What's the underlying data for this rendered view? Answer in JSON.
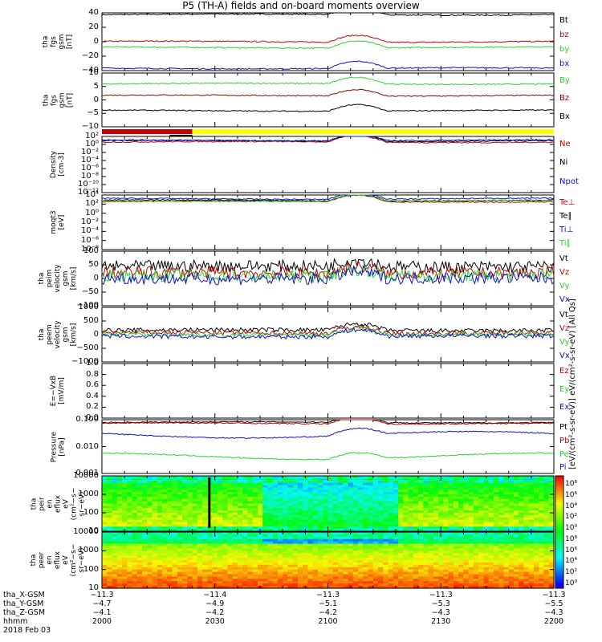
{
  "title": "P5 (TH-A) fields and on-board moments overview",
  "colors": {
    "black": "#000000",
    "red": "#c40000",
    "green": "#27d52a",
    "blue": "#1010c8",
    "darkred": "#8b0000",
    "yellow": "#ffff00"
  },
  "chart_data": [
    {
      "type": "line",
      "ylabel": "tha\nfgs\ngsm\n[nT]",
      "ylim": [
        -40,
        40
      ],
      "ticks": [
        "40",
        "20",
        "0",
        "−20",
        "−40"
      ],
      "series": [
        {
          "name": "Bt",
          "color": "#000000",
          "approx": 40
        },
        {
          "name": "bz",
          "color": "#c40000",
          "approx": 0
        },
        {
          "name": "by",
          "color": "#27d52a",
          "approx": -7
        },
        {
          "name": "bx",
          "color": "#1010c8",
          "approx": -37
        }
      ]
    },
    {
      "type": "line",
      "ylabel": "tha\nfgs\ngsm\n[nT]",
      "ylim": [
        -12,
        10
      ],
      "ticks": [
        "10",
        "5",
        "0",
        "−5",
        "−10"
      ],
      "series": [
        {
          "name": "By",
          "color": "#27d52a",
          "approx": 6
        },
        {
          "name": "Bz",
          "color": "#8b0000",
          "approx": 0
        },
        {
          "name": "Bx",
          "color": "#000000",
          "approx": -6
        }
      ]
    },
    {
      "type": "line",
      "ylabel": "Density\n[cm-3]",
      "scale": "log",
      "ticks": [
        "10²",
        "10⁰",
        "10⁻²",
        "10⁻⁴",
        "10⁻⁶",
        "10⁻⁸",
        "10⁻¹⁰",
        "10⁻¹²"
      ],
      "series": [
        {
          "name": "Ne",
          "color": "#c40000"
        },
        {
          "name": "Ni",
          "color": "#000000"
        },
        {
          "name": "Npot",
          "color": "#1010c8"
        }
      ]
    },
    {
      "type": "line",
      "ylabel": "moqt3\n[eV]",
      "scale": "log",
      "ticks": [
        "10⁴",
        "10²",
        "10⁰",
        "10⁻²",
        "10⁻⁴",
        "10⁻⁶",
        "10⁻⁸"
      ],
      "series": [
        {
          "name": "Te⊥",
          "color": "#c40000"
        },
        {
          "name": "Te∥",
          "color": "#000000"
        },
        {
          "name": "Ti⊥",
          "color": "#1010c8"
        },
        {
          "name": "Ti∥",
          "color": "#27d52a"
        }
      ]
    },
    {
      "type": "line",
      "ylabel": "tha\npeim\nvelocity\ngsm\n[km/s]",
      "ylim": [
        -100,
        100
      ],
      "ticks": [
        "100",
        "50",
        "0",
        "−50",
        "−100"
      ],
      "series": [
        {
          "name": "Vt",
          "color": "#000000"
        },
        {
          "name": "Vz",
          "color": "#c40000"
        },
        {
          "name": "Vy",
          "color": "#27d52a"
        },
        {
          "name": "Vx",
          "color": "#1010c8"
        }
      ]
    },
    {
      "type": "line",
      "ylabel": "tha\npeem\nvelocity\ngsm\n[km/s]",
      "ylim": [
        -1000,
        1000
      ],
      "ticks": [
        "1000",
        "500",
        "0",
        "−500",
        "−1000"
      ],
      "series": [
        {
          "name": "Vt",
          "color": "#000000"
        },
        {
          "name": "Vz",
          "color": "#c40000"
        },
        {
          "name": "Vy",
          "color": "#27d52a"
        },
        {
          "name": "Vx",
          "color": "#1010c8"
        }
      ]
    },
    {
      "type": "line",
      "ylabel": "E=−VxB\n[mV/m]",
      "ylim": [
        0,
        1
      ],
      "ticks": [
        "1.0",
        "0.8",
        "0.6",
        "0.4",
        "0.2",
        "0.0"
      ],
      "series": [
        {
          "name": "Ez",
          "color": "#c40000"
        },
        {
          "name": "Ey",
          "color": "#27d52a"
        },
        {
          "name": "Ex",
          "color": "#1010c8"
        }
      ]
    },
    {
      "type": "line",
      "ylabel": "Pressure\n[nPa]",
      "scale": "log",
      "ticks": [
        "0.100",
        "0.010",
        "0.001"
      ],
      "series": [
        {
          "name": "Pt",
          "color": "#000000"
        },
        {
          "name": "Pb",
          "color": "#c40000"
        },
        {
          "name": "Pe",
          "color": "#27d52a"
        },
        {
          "name": "Pi",
          "color": "#1010c8"
        }
      ]
    },
    {
      "type": "heatmap",
      "ylabel": "tha\npeir\nen\neflux\neV\n(cm²−s−\nsr−eV)",
      "ticks": [
        "10000",
        "1000",
        "100",
        "10"
      ]
    },
    {
      "type": "heatmap",
      "ylabel": "tha\npeer\nen\neflux\neV\n(cm²−s−\nsr−eV)",
      "ticks": [
        "10000",
        "1000",
        "100",
        "10"
      ]
    }
  ],
  "colorbar": {
    "ticks": [
      "10⁸",
      "10⁶",
      "10⁴",
      "10²",
      "10⁰",
      "10⁸",
      "10⁶",
      "10⁴",
      "10²",
      "10⁰"
    ],
    "label": "[eV/(cm²-s-sr-eV)] eV/(cm²-s-sr-eV) [All Qs]"
  },
  "bottom": {
    "row_labels": [
      "tha_X-GSM",
      "tha_Y-GSM",
      "tha_Z-GSM",
      "hhmm",
      "2018 Feb 03"
    ],
    "columns": [
      [
        "−11.3",
        "−4.7",
        "−4.1",
        "2000"
      ],
      [
        "−11.4",
        "−4.9",
        "−4.2",
        "2030"
      ],
      [
        "−11.3",
        "−5.1",
        "−4.2",
        "2100"
      ],
      [
        "−11.3",
        "−5.3",
        "−4.3",
        "2130"
      ],
      [
        "−11.3",
        "−5.5",
        "−4.3",
        "2200"
      ]
    ]
  }
}
